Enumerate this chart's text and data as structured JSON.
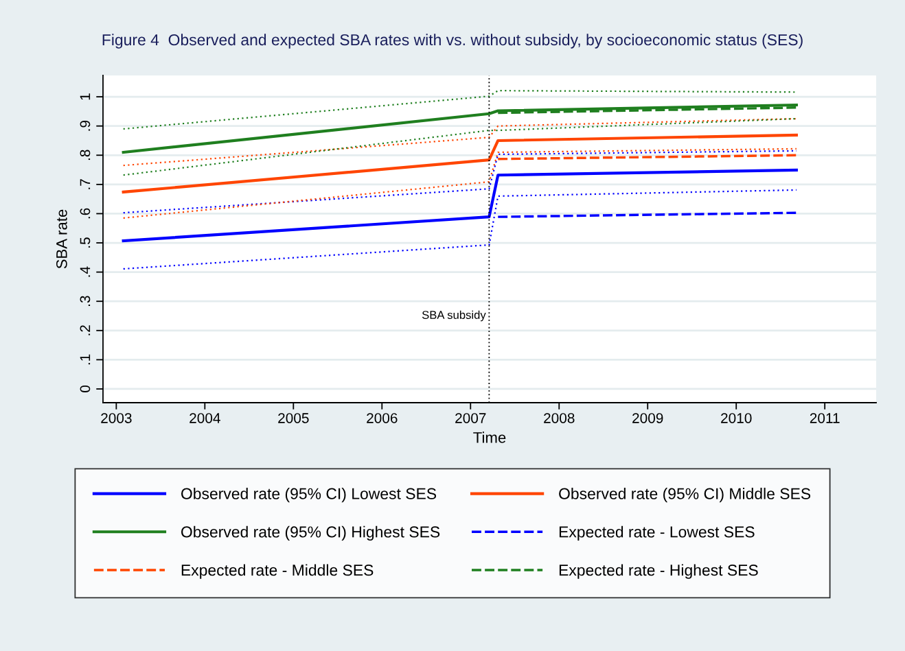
{
  "chart_data": {
    "type": "line",
    "title": "Figure 4  Observed and expected SBA rates with vs. without subsidy, by socioeconomic status (SES)",
    "xlabel": "Time",
    "ylabel": "SBA rate",
    "xlim": [
      2002.85,
      2011.58
    ],
    "xticks": [
      2003,
      2004,
      2005,
      2006,
      2007,
      2008,
      2009,
      2010,
      2011
    ],
    "ylim": [
      -0.047,
      1.073
    ],
    "yticks": [
      0,
      {
        "value": 0.1,
        "label": ".1"
      },
      {
        "value": 0.2,
        "label": ".2"
      },
      {
        "value": 0.3,
        "label": ".3"
      },
      {
        "value": 0.4,
        "label": ".4"
      },
      {
        "value": 0.5,
        "label": ".5"
      },
      {
        "value": 0.6,
        "label": ".6"
      },
      {
        "value": 0.7,
        "label": ".7"
      },
      {
        "value": 0.8,
        "label": ".8"
      },
      {
        "value": 0.9,
        "label": ".9"
      },
      1
    ],
    "grid": "y",
    "legend": "bottom",
    "ref_lines": [
      {
        "axis": "x",
        "value": 2007.21,
        "label": "SBA subsidy",
        "color": "#000000",
        "line_style": "dotted"
      }
    ],
    "series": [
      {
        "name": "Observed rate (95% CI) Lowest SES",
        "color": "#0000ff",
        "line_style": "solid",
        "x": [
          2003.08,
          2007.21,
          2007.31,
          2010.68
        ],
        "values": [
          0.507,
          0.589,
          0.732,
          0.749
        ]
      },
      {
        "name": "Observed rate (95% CI) Middle SES",
        "color": "#ff4500",
        "line_style": "solid",
        "x": [
          2003.08,
          2007.21,
          2007.31,
          2010.68
        ],
        "values": [
          0.674,
          0.784,
          0.85,
          0.869
        ]
      },
      {
        "name": "Observed rate (95% CI) Highest SES",
        "color": "#1f7f1f",
        "line_style": "solid",
        "x": [
          2003.08,
          2007.21,
          2007.31,
          2010.68
        ],
        "values": [
          0.81,
          0.942,
          0.952,
          0.972
        ]
      },
      {
        "name": "Expected rate - Lowest SES",
        "color": "#0000ff",
        "line_style": "dashed",
        "x": [
          2007.31,
          2010.68
        ],
        "values": [
          0.589,
          0.603
        ]
      },
      {
        "name": "Expected rate - Middle SES",
        "color": "#ff4500",
        "line_style": "dashed",
        "x": [
          2007.31,
          2010.68
        ],
        "values": [
          0.787,
          0.8
        ]
      },
      {
        "name": "Expected rate - Highest SES",
        "color": "#1f7f1f",
        "line_style": "dashed",
        "x": [
          2007.31,
          2010.68
        ],
        "values": [
          0.945,
          0.963
        ]
      },
      {
        "color": "#0000ff",
        "line_style": "dotted",
        "x": [
          2003.08,
          2007.21,
          2007.31,
          2010.68
        ],
        "values": [
          0.411,
          0.493,
          0.66,
          0.681
        ]
      },
      {
        "color": "#0000ff",
        "line_style": "dotted",
        "x": [
          2003.08,
          2007.21,
          2007.31,
          2010.68
        ],
        "values": [
          0.603,
          0.685,
          0.803,
          0.815
        ]
      },
      {
        "color": "#ff4500",
        "line_style": "dotted",
        "x": [
          2003.08,
          2007.21,
          2007.31,
          2010.68
        ],
        "values": [
          0.585,
          0.709,
          0.81,
          0.822
        ]
      },
      {
        "color": "#ff4500",
        "line_style": "dotted",
        "x": [
          2003.08,
          2007.21,
          2007.31,
          2010.68
        ],
        "values": [
          0.765,
          0.861,
          0.9,
          0.925
        ]
      },
      {
        "color": "#1f7f1f",
        "line_style": "dotted",
        "x": [
          2003.08,
          2007.21,
          2007.31,
          2010.68
        ],
        "values": [
          0.732,
          0.885,
          0.885,
          0.925
        ]
      },
      {
        "color": "#1f7f1f",
        "line_style": "dotted",
        "x": [
          2003.08,
          2007.21,
          2007.31,
          2010.68
        ],
        "values": [
          0.89,
          1.002,
          1.021,
          1.016
        ]
      }
    ]
  }
}
